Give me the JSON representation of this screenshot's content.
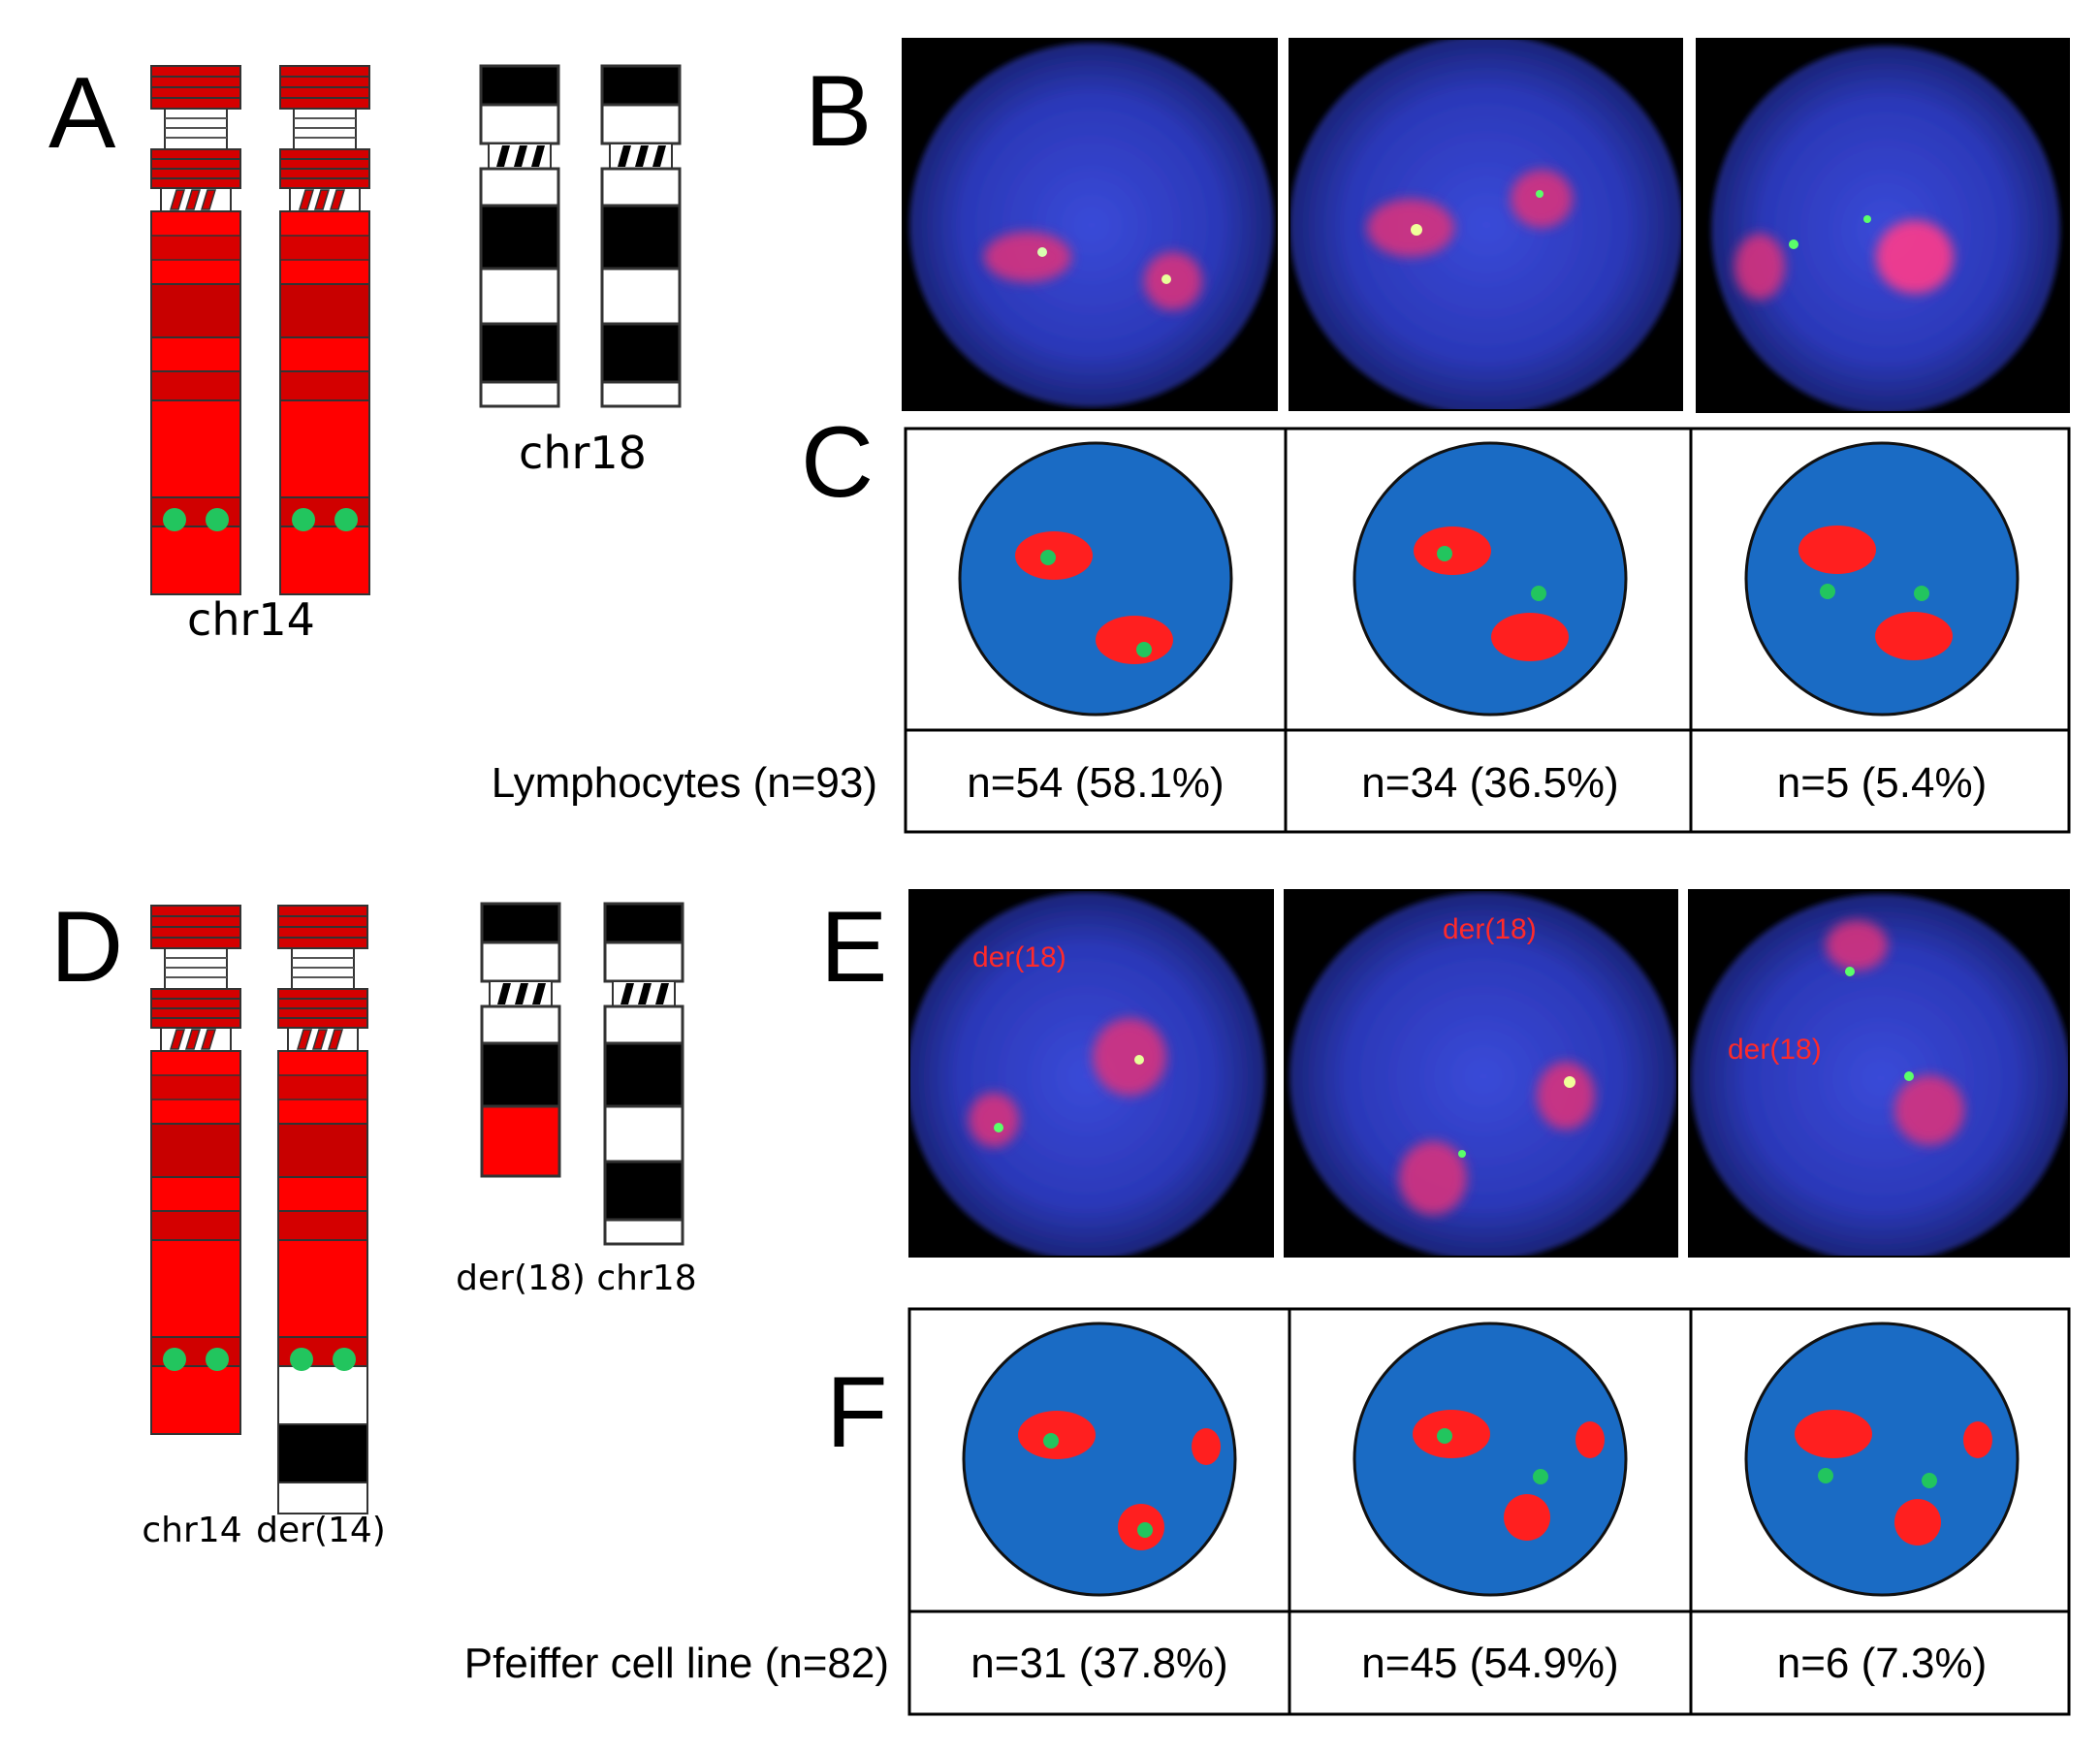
{
  "panel_letters": {
    "A": "A",
    "B": "B",
    "C": "C",
    "D": "D",
    "E": "E",
    "F": "F"
  },
  "panel_A": {
    "chr14_label": "chr14",
    "chr18_label": "chr18"
  },
  "panel_D": {
    "chr14_label": "chr14",
    "der14_label": "der(14)",
    "der18_label": "der(18)",
    "chr18_label": "chr18"
  },
  "panel_C": {
    "row_label": "Lymphocytes (n=93)",
    "counts": [
      "n=54 (58.1%)",
      "n=34 (36.5%)",
      "n=5 (5.4%)"
    ]
  },
  "panel_E": {
    "der18_labels": [
      "der(18)",
      "der(18)",
      "der(18)"
    ]
  },
  "panel_F": {
    "row_label": "Pfeiffer cell line (n=82)",
    "counts": [
      "n=31 (37.8%)",
      "n=45 (54.9%)",
      "n=6 (7.3%)"
    ]
  },
  "colors": {
    "chromosome_red": "#ff0000",
    "chromosome_dark_red": "#d00000",
    "nucleus_blue": "#1a6bc4",
    "signal_red": "#ff1f1f",
    "signal_green": "#22c55e",
    "micrograph_blue": "#2d3fc8"
  }
}
